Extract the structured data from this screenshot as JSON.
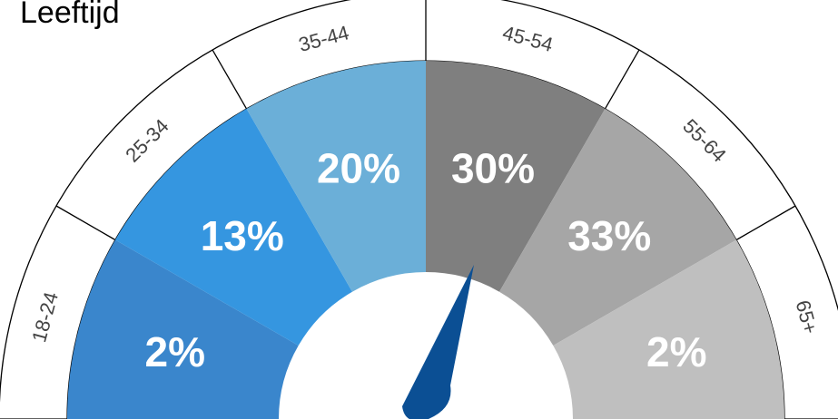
{
  "chart_data": {
    "type": "gauge",
    "title": "Leeftijd",
    "categories": [
      "18-24",
      "25-34",
      "35-44",
      "45-54",
      "55-64",
      "65+"
    ],
    "values": [
      2,
      13,
      20,
      30,
      33,
      2
    ],
    "value_labels": [
      "2%",
      "13%",
      "20%",
      "30%",
      "33%",
      "2%"
    ],
    "colors": [
      "#3a86cc",
      "#3596e0",
      "#6bafd8",
      "#7f7f7f",
      "#a6a6a6",
      "#bfbfbf"
    ],
    "needle_color": "#0b4f94"
  }
}
